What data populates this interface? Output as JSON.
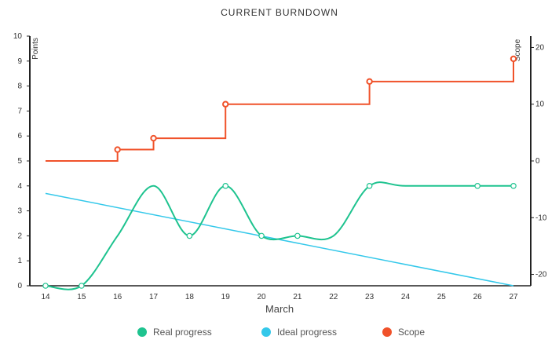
{
  "chart_data": {
    "type": "line",
    "title": "CURRENT BURNDOWN",
    "xlabel": "March",
    "ylabel": "Points",
    "y2label": "Scope",
    "categories": [
      "14",
      "15",
      "16",
      "17",
      "18",
      "19",
      "20",
      "21",
      "22",
      "23",
      "24",
      "25",
      "26",
      "27"
    ],
    "ylim": [
      0,
      10
    ],
    "y2lim": [
      -22,
      22
    ],
    "yticks": [
      "0",
      "1",
      "2",
      "3",
      "4",
      "5",
      "6",
      "7",
      "8",
      "9",
      "10"
    ],
    "y2ticks": [
      "-20",
      "-10",
      "0",
      "10",
      "20"
    ],
    "legend_position": "bottom",
    "series": [
      {
        "name": "Real progress",
        "color": "#1ec38f",
        "axis": "left",
        "style": "smooth",
        "points": [
          {
            "x": "14",
            "y": 0,
            "marker": true
          },
          {
            "x": "15",
            "y": 0,
            "marker": true
          },
          {
            "x": "16",
            "y": 2,
            "marker": false
          },
          {
            "x": "17",
            "y": 4,
            "marker": false
          },
          {
            "x": "18",
            "y": 2,
            "marker": true
          },
          {
            "x": "19",
            "y": 4,
            "marker": true
          },
          {
            "x": "20",
            "y": 2,
            "marker": true
          },
          {
            "x": "21",
            "y": 2,
            "marker": true
          },
          {
            "x": "22",
            "y": 2,
            "marker": false
          },
          {
            "x": "23",
            "y": 4,
            "marker": true
          },
          {
            "x": "24",
            "y": 4,
            "marker": false
          },
          {
            "x": "26",
            "y": 4,
            "marker": true
          },
          {
            "x": "27",
            "y": 4,
            "marker": true
          }
        ]
      },
      {
        "name": "Ideal progress",
        "color": "#34c8ea",
        "axis": "left",
        "style": "straight",
        "points": [
          {
            "x": "14",
            "y": 3.7,
            "marker": false
          },
          {
            "x": "27",
            "y": 0,
            "marker": false
          }
        ]
      },
      {
        "name": "Scope",
        "color": "#f0522a",
        "axis": "right",
        "style": "step",
        "points": [
          {
            "x": "14",
            "y": 0,
            "marker": false
          },
          {
            "x": "16",
            "y": 2,
            "marker": true
          },
          {
            "x": "17",
            "y": 4,
            "marker": true
          },
          {
            "x": "19",
            "y": 10,
            "marker": true
          },
          {
            "x": "23",
            "y": 14,
            "marker": true
          },
          {
            "x": "27",
            "y": 18,
            "marker": true
          }
        ]
      }
    ]
  }
}
